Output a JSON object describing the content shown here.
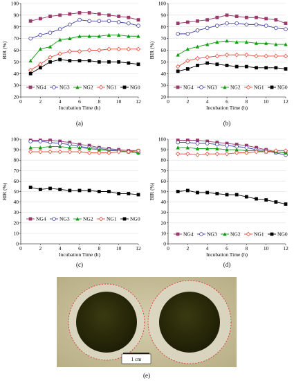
{
  "chart_data": [
    {
      "type": "line",
      "panel_label": "(a)",
      "xlabel": "Incubation Time (h)",
      "ylabel": "BIR (%)",
      "xlim": [
        0,
        12
      ],
      "ylim": [
        20,
        100
      ],
      "xticks": [
        0,
        2,
        4,
        6,
        8,
        10,
        12
      ],
      "yticks": [
        20,
        30,
        40,
        50,
        60,
        70,
        80,
        90,
        100
      ],
      "legend_position": "bottom",
      "x": [
        1,
        2,
        3,
        4,
        5,
        6,
        7,
        8,
        9,
        10,
        11,
        12
      ],
      "series": [
        {
          "name": "NG4",
          "color": "#9a3a6a",
          "marker": "square",
          "values": [
            85,
            87,
            89,
            90,
            91,
            92,
            92,
            91,
            90,
            89,
            88,
            86
          ]
        },
        {
          "name": "NG3",
          "color": "#3a3aa0",
          "marker": "circle-open",
          "values": [
            70,
            73,
            75,
            78,
            82,
            86,
            85,
            85,
            85,
            84,
            83,
            81
          ]
        },
        {
          "name": "NG2",
          "color": "#159a15",
          "marker": "triangle",
          "values": [
            51,
            61,
            63,
            69,
            70,
            72,
            72,
            72,
            73,
            73,
            72,
            72
          ]
        },
        {
          "name": "NG1",
          "color": "#e84a3a",
          "marker": "diamond-open",
          "values": [
            43,
            48,
            54,
            57,
            59,
            59,
            60,
            60,
            61,
            61,
            61,
            61
          ]
        },
        {
          "name": "NG0",
          "color": "#000000",
          "marker": "square",
          "values": [
            40,
            45,
            50,
            52,
            51,
            51,
            51,
            50,
            50,
            50,
            49,
            48
          ]
        }
      ]
    },
    {
      "type": "line",
      "panel_label": "(b)",
      "xlabel": "Incubation Time (h)",
      "ylabel": "BIR (%)",
      "xlim": [
        0,
        12
      ],
      "ylim": [
        20,
        100
      ],
      "xticks": [
        0,
        2,
        4,
        6,
        8,
        10,
        12
      ],
      "yticks": [
        20,
        30,
        40,
        50,
        60,
        70,
        80,
        90,
        100
      ],
      "legend_position": "bottom",
      "x": [
        1,
        2,
        3,
        4,
        5,
        6,
        7,
        8,
        9,
        10,
        11,
        12
      ],
      "series": [
        {
          "name": "NG4",
          "color": "#9a3a6a",
          "marker": "square",
          "values": [
            83,
            84,
            85,
            86,
            88,
            90,
            89,
            88,
            88,
            87,
            86,
            83
          ]
        },
        {
          "name": "NG3",
          "color": "#3a3aa0",
          "marker": "circle-open",
          "values": [
            74,
            74,
            77,
            79,
            81,
            83,
            83,
            82,
            82,
            81,
            79,
            78
          ]
        },
        {
          "name": "NG2",
          "color": "#159a15",
          "marker": "triangle",
          "values": [
            56,
            61,
            63,
            65,
            67,
            68,
            67,
            67,
            66,
            66,
            65,
            65
          ]
        },
        {
          "name": "NG1",
          "color": "#e84a3a",
          "marker": "diamond-open",
          "values": [
            46,
            51,
            53,
            54,
            55,
            56,
            56,
            56,
            55,
            55,
            55,
            55
          ]
        },
        {
          "name": "NG0",
          "color": "#000000",
          "marker": "square",
          "values": [
            42,
            44,
            47,
            49,
            48,
            47,
            46,
            46,
            45,
            45,
            45,
            44
          ]
        }
      ]
    },
    {
      "type": "line",
      "panel_label": "(c)",
      "xlabel": "Incubation Time (h)",
      "ylabel": "BIR (%)",
      "xlim": [
        0,
        12
      ],
      "ylim": [
        0,
        100
      ],
      "xticks": [
        0,
        2,
        4,
        6,
        8,
        10,
        12
      ],
      "yticks": [
        0,
        10,
        20,
        30,
        40,
        50,
        60,
        70,
        80,
        90,
        100
      ],
      "legend_position": "bottom",
      "x": [
        1,
        2,
        3,
        4,
        5,
        6,
        7,
        8,
        9,
        10,
        11,
        12
      ],
      "series": [
        {
          "name": "NG4",
          "color": "#9a3a6a",
          "marker": "square",
          "values": [
            99,
            99,
            99,
            98,
            97,
            95,
            94,
            92,
            91,
            90,
            89,
            89
          ]
        },
        {
          "name": "NG3",
          "color": "#3a3aa0",
          "marker": "circle-open",
          "values": [
            98,
            98,
            97,
            96,
            95,
            93,
            92,
            91,
            90,
            89,
            88,
            87
          ]
        },
        {
          "name": "NG2",
          "color": "#159a15",
          "marker": "triangle",
          "values": [
            92,
            92,
            93,
            93,
            92,
            92,
            91,
            90,
            89,
            89,
            88,
            87
          ]
        },
        {
          "name": "NG1",
          "color": "#e84a3a",
          "marker": "diamond-open",
          "values": [
            88,
            88,
            88,
            88,
            88,
            88,
            87,
            87,
            87,
            88,
            88,
            89
          ]
        },
        {
          "name": "NG0",
          "color": "#000000",
          "marker": "square",
          "values": [
            54,
            52,
            53,
            52,
            51,
            51,
            51,
            50,
            50,
            48,
            48,
            47
          ]
        }
      ]
    },
    {
      "type": "line",
      "panel_label": "(d)",
      "xlabel": "Incubation Time (h)",
      "ylabel": "BIR (%)",
      "xlim": [
        0,
        12
      ],
      "ylim": [
        0,
        100
      ],
      "xticks": [
        0,
        2,
        4,
        6,
        8,
        10,
        12
      ],
      "yticks": [
        0,
        10,
        20,
        30,
        40,
        50,
        60,
        70,
        80,
        90,
        100
      ],
      "legend_position": "bottom",
      "x": [
        1,
        2,
        3,
        4,
        5,
        6,
        7,
        8,
        9,
        10,
        11,
        12
      ],
      "series": [
        {
          "name": "NG4",
          "color": "#9a3a6a",
          "marker": "square",
          "values": [
            99,
            99,
            99,
            98,
            97,
            96,
            95,
            94,
            92,
            90,
            88,
            87
          ]
        },
        {
          "name": "NG3",
          "color": "#3a3aa0",
          "marker": "circle-open",
          "values": [
            97,
            97,
            96,
            96,
            95,
            94,
            93,
            92,
            90,
            89,
            87,
            85
          ]
        },
        {
          "name": "NG2",
          "color": "#159a15",
          "marker": "triangle",
          "values": [
            92,
            92,
            91,
            91,
            91,
            90,
            90,
            89,
            89,
            88,
            88,
            87
          ]
        },
        {
          "name": "NG1",
          "color": "#e84a3a",
          "marker": "diamond-open",
          "values": [
            86,
            86,
            85,
            86,
            86,
            86,
            87,
            87,
            88,
            88,
            89,
            89
          ]
        },
        {
          "name": "NG0",
          "color": "#000000",
          "marker": "square",
          "values": [
            50,
            51,
            49,
            49,
            48,
            47,
            47,
            45,
            43,
            42,
            40,
            38
          ]
        }
      ]
    }
  ],
  "photo": {
    "panel_label": "(e)",
    "scale_label": "1 cm"
  }
}
